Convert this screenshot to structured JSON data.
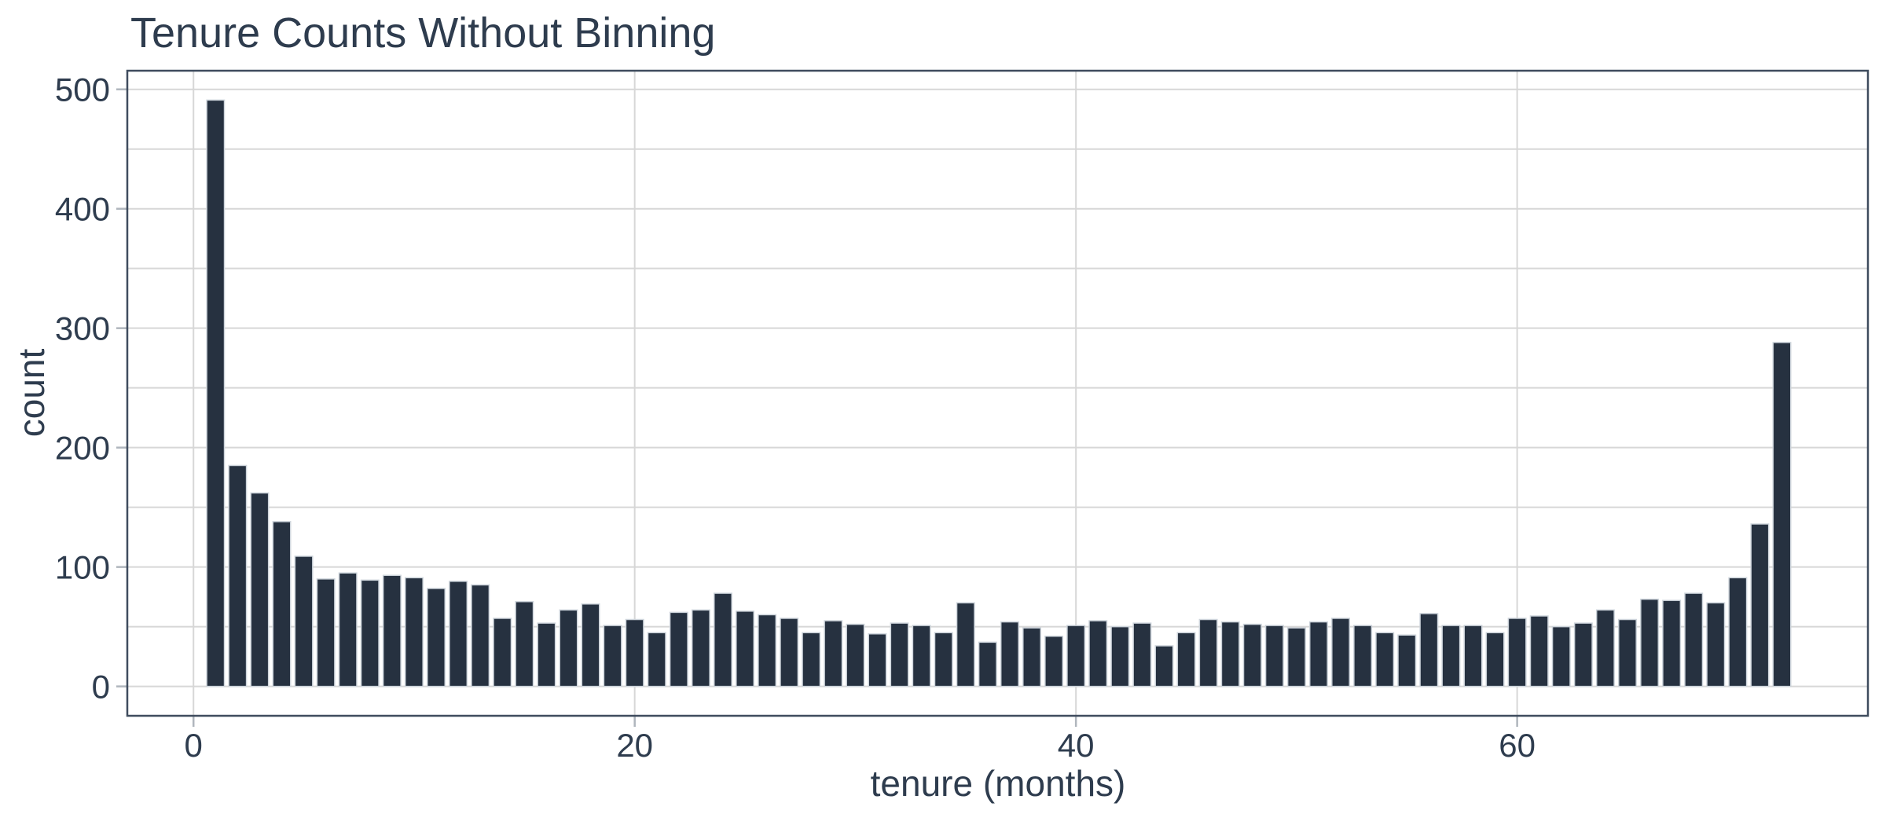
{
  "chart_data": {
    "type": "bar",
    "title": "Tenure Counts Without Binning",
    "xlabel": "tenure (months)",
    "ylabel": "count",
    "x": [
      1,
      2,
      3,
      4,
      5,
      6,
      7,
      8,
      9,
      10,
      11,
      12,
      13,
      14,
      15,
      16,
      17,
      18,
      19,
      20,
      21,
      22,
      23,
      24,
      25,
      26,
      27,
      28,
      29,
      30,
      31,
      32,
      33,
      34,
      35,
      36,
      37,
      38,
      39,
      40,
      41,
      42,
      43,
      44,
      45,
      46,
      47,
      48,
      49,
      50,
      51,
      52,
      53,
      54,
      55,
      56,
      57,
      58,
      59,
      60,
      61,
      62,
      63,
      64,
      65,
      66,
      67,
      68,
      69,
      70,
      71,
      72
    ],
    "values": [
      491,
      185,
      162,
      138,
      109,
      90,
      95,
      89,
      93,
      91,
      82,
      88,
      85,
      57,
      71,
      53,
      64,
      69,
      51,
      56,
      45,
      62,
      64,
      78,
      63,
      60,
      57,
      45,
      55,
      52,
      44,
      53,
      51,
      45,
      70,
      37,
      54,
      49,
      42,
      51,
      55,
      50,
      53,
      34,
      45,
      56,
      54,
      52,
      51,
      49,
      54,
      57,
      51,
      45,
      43,
      61,
      51,
      51,
      45,
      57,
      59,
      50,
      53,
      64,
      56,
      73,
      72,
      78,
      70,
      91,
      136,
      288
    ],
    "xticks": [
      0,
      20,
      40,
      60
    ],
    "yticks": [
      0,
      100,
      200,
      300,
      400,
      500
    ],
    "grid_step_y": 50,
    "xlim": [
      -3.0,
      75.9
    ],
    "ylim": [
      -24.6,
      515.6
    ],
    "grid": true,
    "legend_position": "none",
    "colors": {
      "bar_fill": "#263140",
      "bar_edge": "#ccd3da",
      "gridline": "#d7d7d7",
      "spine": "#3f4c5e",
      "tick_mark": "#b0b6bd",
      "text": "#2e3c4e",
      "background": "#ffffff"
    }
  }
}
